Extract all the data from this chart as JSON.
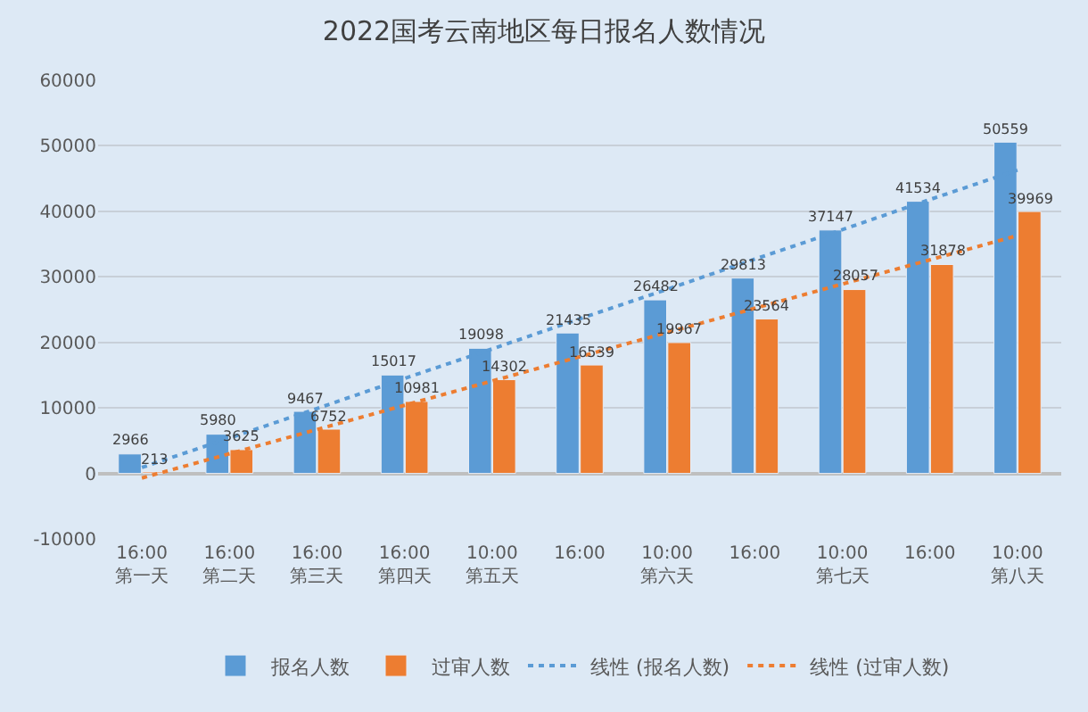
{
  "chart_data": {
    "type": "bar",
    "title": "2022国考云南地区每日报名人数情况",
    "categories": [
      "16:00\n第一天",
      "16:00\n第二天",
      "16:00\n第三天",
      "16:00\n第四天",
      "10:00\n第五天",
      "16:00",
      "10:00\n第六天",
      "16:00",
      "10:00\n第七天",
      "16:00",
      "10:00\n第八天"
    ],
    "series": [
      {
        "name": "报名人数",
        "color": "#5b9bd5",
        "values": [
          2966,
          5980,
          9467,
          15017,
          19098,
          21435,
          26482,
          29813,
          37147,
          41534,
          50559
        ],
        "value_labels": [
          "2966",
          "5980",
          "9467",
          "15017",
          "19098",
          "21435",
          "26482",
          "29813",
          "37147",
          "41534",
          "50559"
        ]
      },
      {
        "name": "过审人数",
        "color": "#ed7d31",
        "values": [
          213,
          3625,
          6752,
          10981,
          14302,
          16539,
          19967,
          23564,
          28057,
          31878,
          39969
        ],
        "value_labels": [
          "213",
          "3625",
          "6752",
          "10981",
          "14302",
          "16539",
          "19967",
          "23564",
          "28057",
          "31878",
          "39969"
        ]
      },
      {
        "name": "线性 (报名人数)",
        "color": "#5b9bd5",
        "type": "line",
        "line_style": "dotted",
        "values": [
          900,
          5400,
          9900,
          14500,
          19000,
          23600,
          28100,
          32700,
          37200,
          41800,
          46300
        ]
      },
      {
        "name": "线性 (过审人数)",
        "color": "#ed7d31",
        "type": "line",
        "line_style": "dotted",
        "values": [
          -700,
          3000,
          6700,
          10400,
          14100,
          17800,
          21500,
          25200,
          28900,
          32600,
          36300
        ]
      }
    ],
    "ylim": [
      -10000,
      60000
    ],
    "yticks": [
      -10000,
      0,
      10000,
      20000,
      30000,
      40000,
      50000,
      60000
    ],
    "grid": "y",
    "legend": "bottom"
  }
}
